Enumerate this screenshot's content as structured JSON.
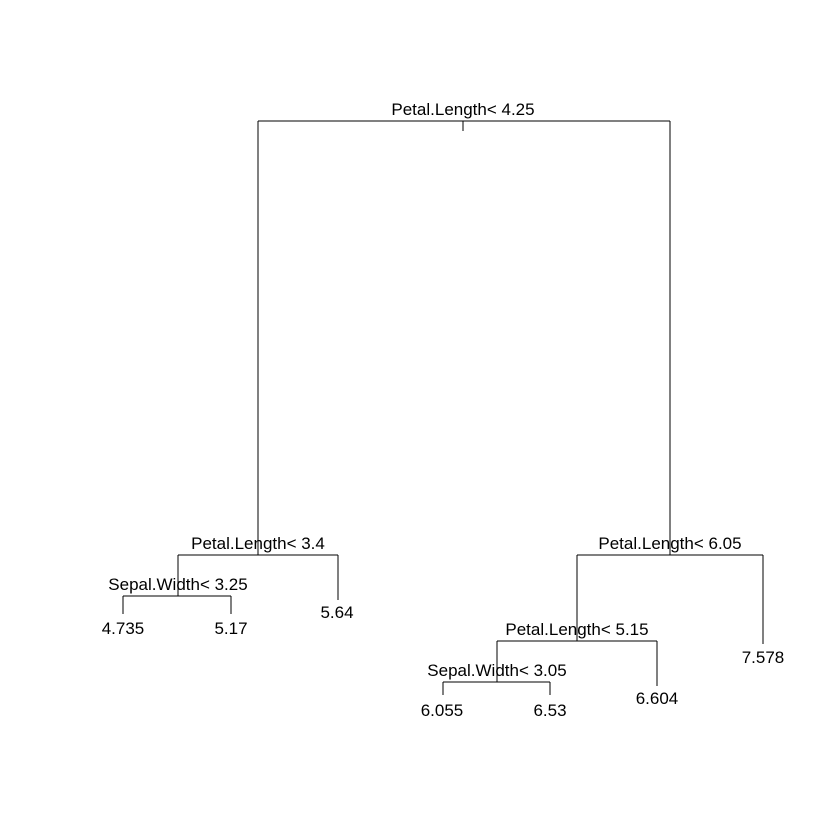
{
  "tree": {
    "root": {
      "split": "Petal.Length< 4.25",
      "left": {
        "split": "Petal.Length< 3.4",
        "left": {
          "split": "Sepal.Width< 3.25",
          "left": {
            "leaf": "4.735"
          },
          "right": {
            "leaf": "5.17"
          }
        },
        "right": {
          "leaf": "5.64"
        }
      },
      "right": {
        "split": "Petal.Length< 6.05",
        "left": {
          "split": "Petal.Length< 5.15",
          "left": {
            "split": "Sepal.Width< 3.05",
            "left": {
              "leaf": "6.055"
            },
            "right": {
              "leaf": "6.53"
            }
          },
          "right": {
            "leaf": "6.604"
          }
        },
        "right": {
          "leaf": "7.578"
        }
      }
    }
  },
  "colors": {
    "line": "#000000",
    "text": "#000000",
    "background": "#ffffff"
  }
}
